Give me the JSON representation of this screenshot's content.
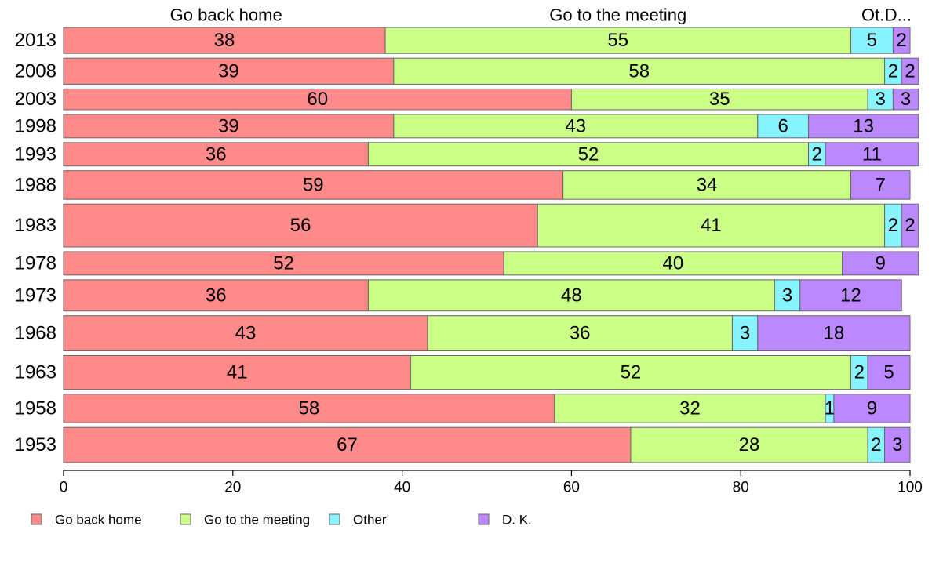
{
  "chart_data": {
    "type": "bar",
    "orientation": "horizontal",
    "stacked": true,
    "categories": [
      "2013",
      "2008",
      "2003",
      "1998",
      "1993",
      "1988",
      "1983",
      "1978",
      "1973",
      "1968",
      "1963",
      "1958",
      "1953"
    ],
    "series": [
      {
        "name": "Go back home",
        "color": "#ff8a8a",
        "values": [
          38,
          39,
          60,
          39,
          36,
          59,
          56,
          52,
          36,
          43,
          41,
          58,
          67
        ]
      },
      {
        "name": "Go to the meeting",
        "color": "#ccff88",
        "values": [
          55,
          58,
          35,
          43,
          52,
          34,
          41,
          40,
          48,
          36,
          52,
          32,
          28
        ]
      },
      {
        "name": "Other",
        "color": "#88f4ff",
        "values": [
          5,
          2,
          3,
          6,
          2,
          0,
          2,
          0,
          3,
          3,
          2,
          1,
          2
        ]
      },
      {
        "name": "D. K.",
        "color": "#bb88ff",
        "values": [
          2,
          2,
          3,
          13,
          11,
          7,
          2,
          9,
          12,
          18,
          5,
          9,
          3
        ]
      }
    ],
    "bar_weights": [
      1.0,
      1.0,
      0.8,
      0.9,
      0.9,
      1.1,
      1.65,
      0.9,
      1.2,
      1.35,
      1.3,
      1.1,
      1.35
    ],
    "top_labels": [
      "Go back home",
      "Go to the meeting",
      "Ot..",
      "D..."
    ],
    "x_ticks": [
      "0",
      "20",
      "40",
      "60",
      "80",
      "100"
    ],
    "xlim": [
      0,
      100
    ],
    "grid": false,
    "legend_position": "bottom"
  }
}
